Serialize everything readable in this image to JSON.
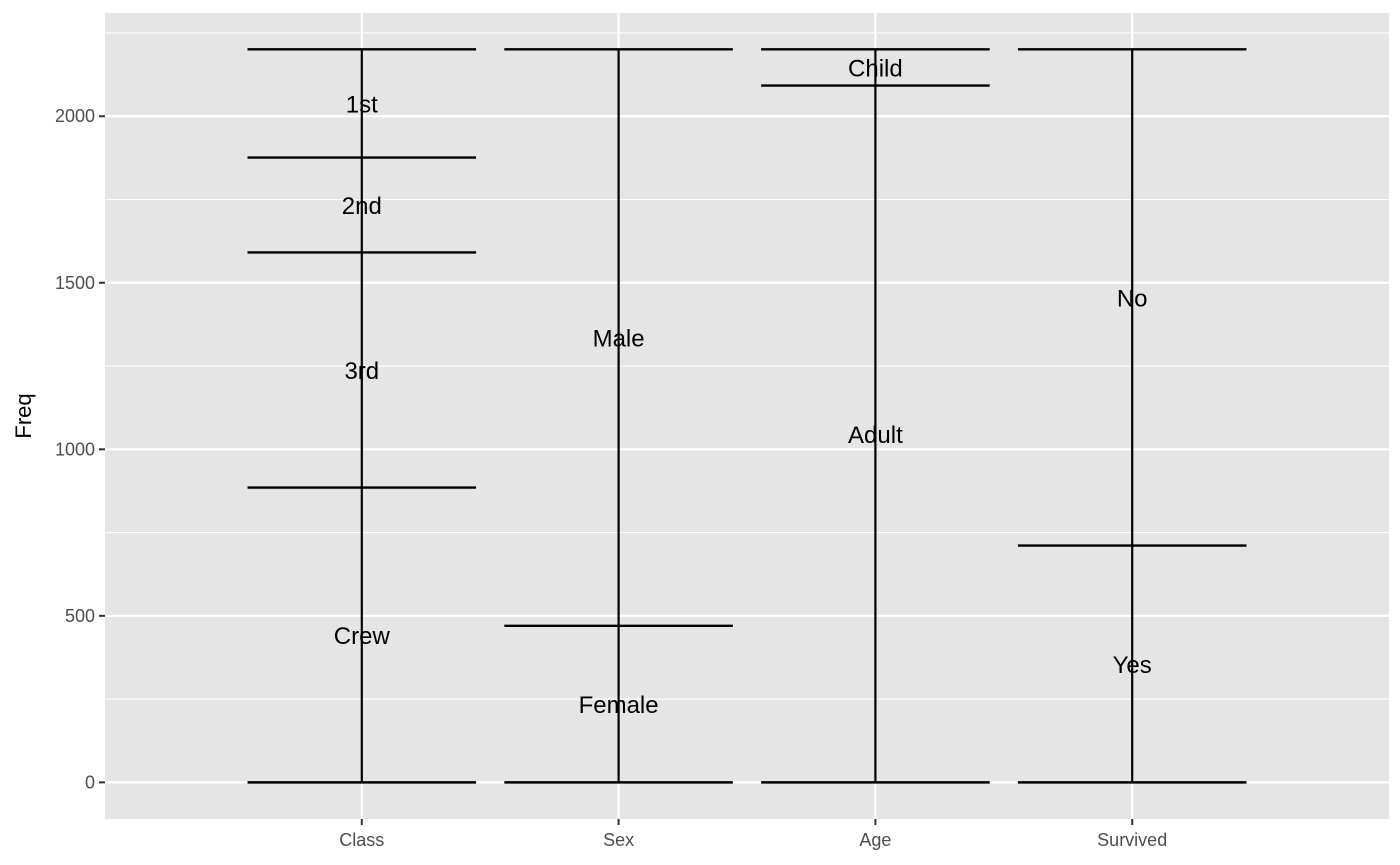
{
  "chart_data": {
    "type": "alluvial-strata",
    "ylabel": "Freq",
    "ylim": [
      -110,
      2310
    ],
    "yticks": [
      0,
      500,
      1000,
      1500,
      2000
    ],
    "grid": true,
    "axes": [
      {
        "name": "Class",
        "strata": [
          {
            "label": "Crew",
            "count": 885
          },
          {
            "label": "3rd",
            "count": 706
          },
          {
            "label": "2nd",
            "count": 285
          },
          {
            "label": "1st",
            "count": 325
          }
        ]
      },
      {
        "name": "Sex",
        "strata": [
          {
            "label": "Female",
            "count": 470
          },
          {
            "label": "Male",
            "count": 1731
          }
        ]
      },
      {
        "name": "Age",
        "strata": [
          {
            "label": "Adult",
            "count": 2092
          },
          {
            "label": "Child",
            "count": 109
          }
        ]
      },
      {
        "name": "Survived",
        "strata": [
          {
            "label": "Yes",
            "count": 711
          },
          {
            "label": "No",
            "count": 1490
          }
        ]
      }
    ]
  }
}
